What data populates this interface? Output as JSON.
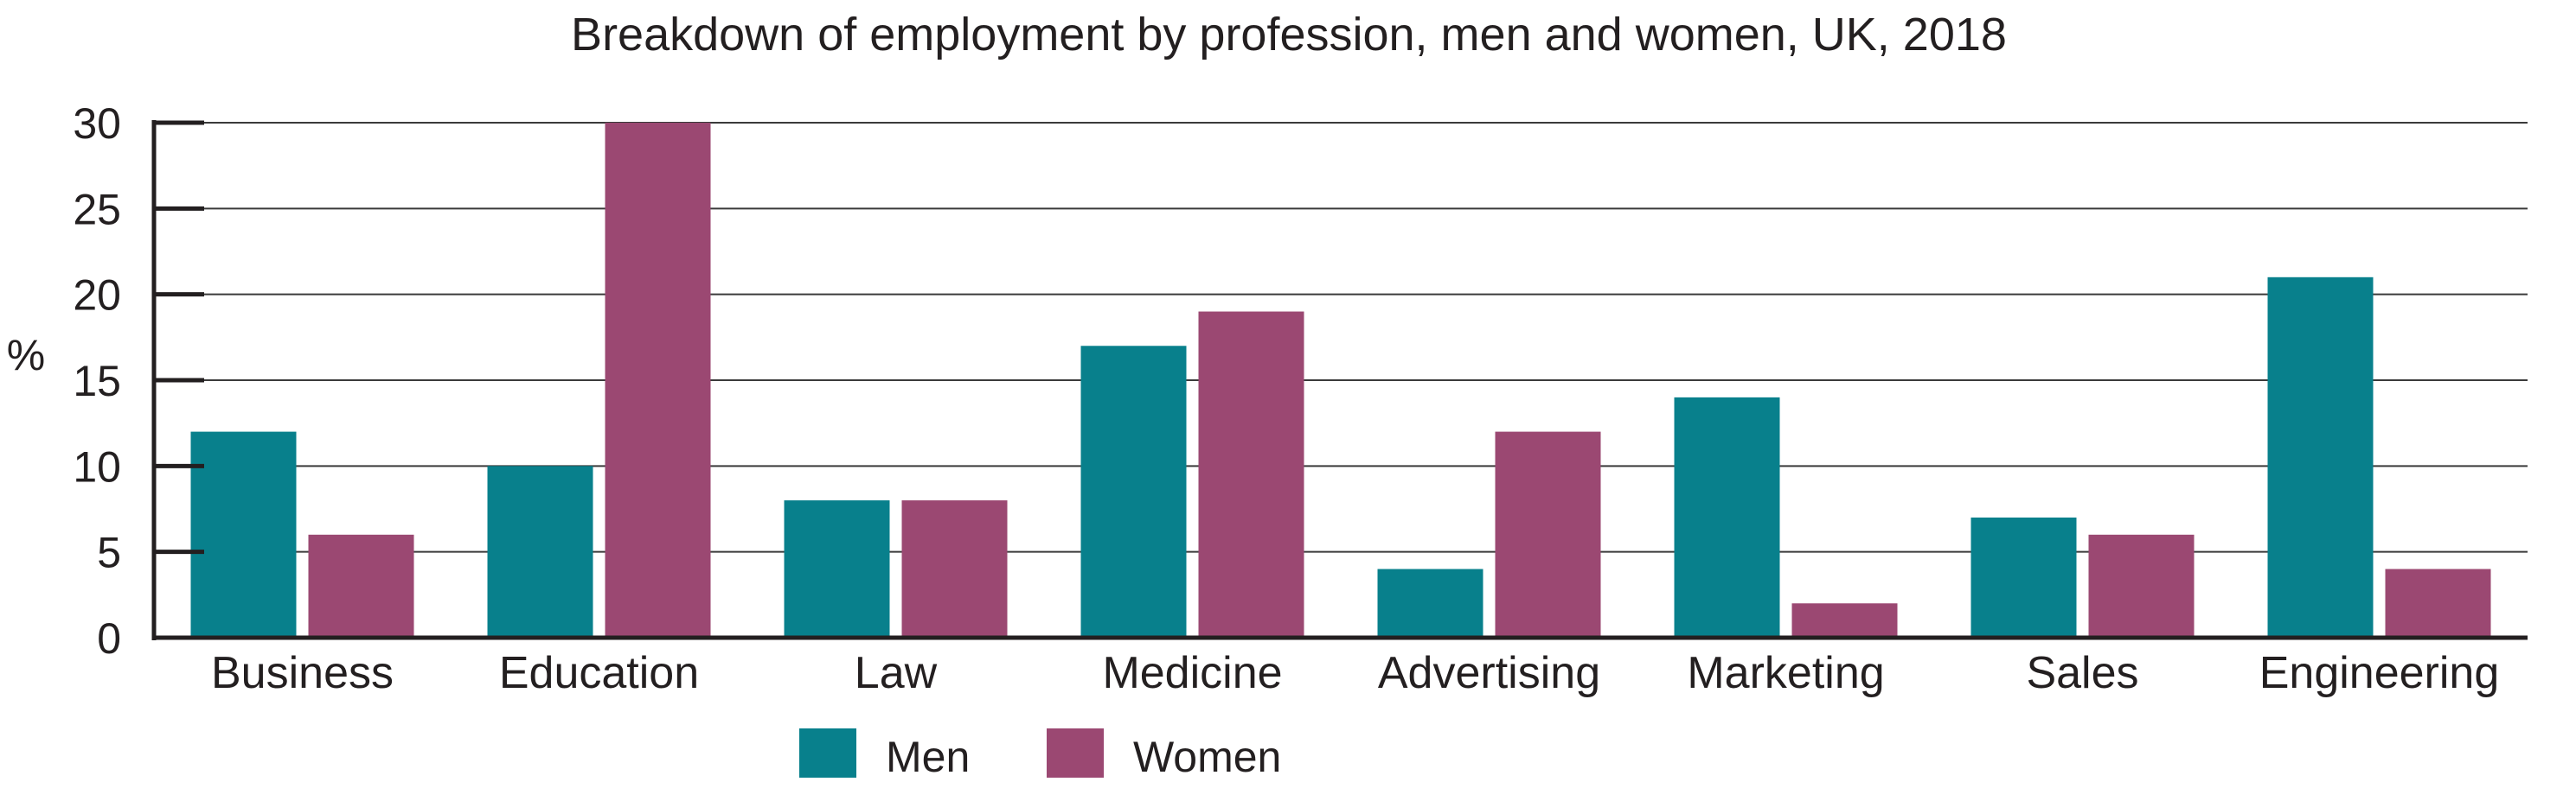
{
  "chart_data": {
    "type": "bar",
    "title": "Breakdown of employment by profession, men and women, UK, 2018",
    "xlabel": "",
    "ylabel": "%",
    "ylim": [
      0,
      30
    ],
    "yticks": [
      0,
      5,
      10,
      15,
      20,
      25,
      30
    ],
    "grid": true,
    "legend_position": "bottom",
    "categories": [
      "Business",
      "Education",
      "Law",
      "Medicine",
      "Advertising",
      "Marketing",
      "Sales",
      "Engineering"
    ],
    "series": [
      {
        "name": "Men",
        "color": "#08808c",
        "values": [
          12,
          10,
          8,
          17,
          4,
          14,
          7,
          21
        ]
      },
      {
        "name": "Women",
        "color": "#9b4872",
        "values": [
          6,
          30,
          8,
          19,
          12,
          2,
          6,
          4
        ]
      }
    ]
  }
}
